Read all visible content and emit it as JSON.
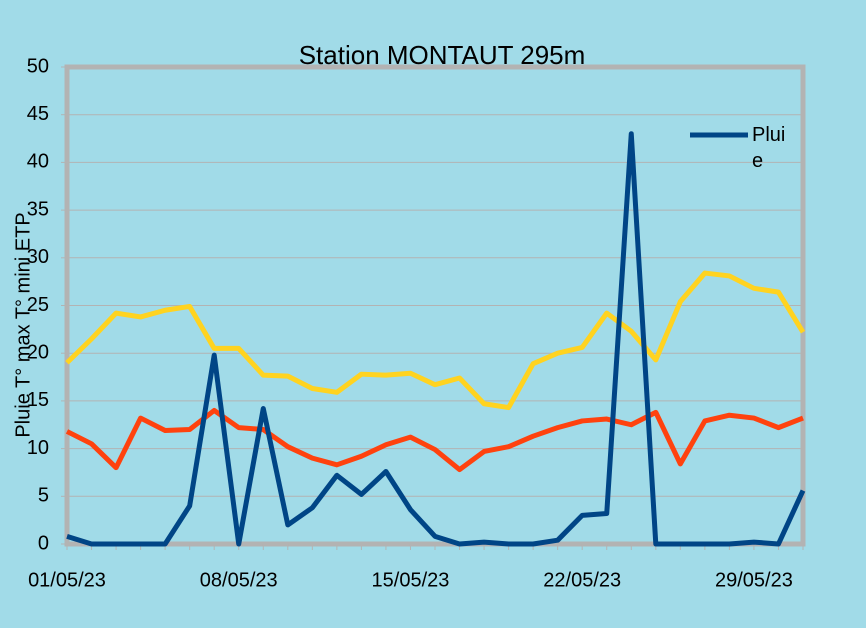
{
  "chart_data": {
    "type": "line",
    "title": "Station MONTAUT 295m",
    "y_label": "Pluie T° max T° mini ETP",
    "categories": [
      "01/05/23",
      null,
      null,
      null,
      null,
      null,
      null,
      "08/05/23",
      null,
      null,
      null,
      null,
      null,
      null,
      "15/05/23",
      null,
      null,
      null,
      null,
      null,
      null,
      "22/05/23",
      null,
      null,
      null,
      null,
      null,
      null,
      "29/05/23",
      null,
      null
    ],
    "series": [
      {
        "name": "Pluie",
        "color": "#004586",
        "values": [
          0.8,
          0,
          0,
          0,
          0,
          4,
          19.8,
          0,
          14.2,
          2,
          3.8,
          7.2,
          5.2,
          7.6,
          3.6,
          0.8,
          0,
          0.2,
          0,
          0,
          0.4,
          3,
          3.2,
          43,
          0,
          0,
          0,
          0,
          0.2,
          0,
          5.6
        ]
      },
      {
        "color": "#ffd320",
        "values": [
          19,
          21.5,
          24.2,
          23.8,
          24.5,
          24.9,
          20.5,
          20.5,
          17.7,
          17.6,
          16.3,
          15.9,
          17.8,
          17.7,
          17.9,
          16.7,
          17.4,
          14.7,
          14.3,
          18.9,
          20,
          20.6,
          24.2,
          22.3,
          19.3,
          25.4,
          28.4,
          28.1,
          26.8,
          26.4,
          22.2
        ]
      },
      {
        "color": "#ff420e",
        "values": [
          11.8,
          10.5,
          8,
          13.2,
          11.9,
          12,
          14,
          12.2,
          12,
          10.2,
          9,
          8.3,
          9.2,
          10.4,
          11.2,
          9.9,
          7.8,
          9.7,
          10.2,
          11.3,
          12.2,
          12.9,
          13.1,
          12.5,
          13.8,
          8.4,
          12.9,
          13.5,
          13.2,
          12.2,
          13.2
        ]
      }
    ],
    "ylim": [
      0,
      50
    ],
    "yticks": [
      0,
      5,
      10,
      15,
      20,
      25,
      30,
      35,
      40,
      45,
      50
    ],
    "grid": true,
    "legend": "top-right"
  }
}
